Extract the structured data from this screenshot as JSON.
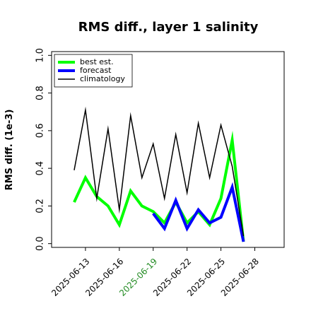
{
  "chart_data": {
    "type": "line",
    "title": "RMS diff., layer 1 salinity",
    "xlabel": "",
    "ylabel": "RMS diff. (1e-3)",
    "ylim": [
      -0.02,
      1.02
    ],
    "y_ticks": [
      0.0,
      0.2,
      0.4,
      0.6,
      0.8,
      1.0
    ],
    "y_tick_labels": [
      "0.0",
      "0.2",
      "0.4",
      "0.6",
      "0.8",
      "1.0"
    ],
    "x_ticks": [
      "2025-06-13",
      "2025-06-16",
      "2025-06-19",
      "2025-06-22",
      "2025-06-25",
      "2025-06-28"
    ],
    "highlighted_x_tick": "2025-06-19",
    "highlight_color": "#228B22",
    "legend_position": "upper-left",
    "grid": false,
    "series": [
      {
        "name": "best est.",
        "color": "#00ff00",
        "x": [
          "2025-06-12",
          "2025-06-13",
          "2025-06-14",
          "2025-06-15",
          "2025-06-16",
          "2025-06-17",
          "2025-06-18",
          "2025-06-19",
          "2025-06-20",
          "2025-06-21",
          "2025-06-22",
          "2025-06-23",
          "2025-06-24",
          "2025-06-25",
          "2025-06-26",
          "2025-06-27"
        ],
        "values": [
          0.22,
          0.35,
          0.25,
          0.2,
          0.1,
          0.28,
          0.2,
          0.17,
          0.11,
          0.22,
          0.11,
          0.17,
          0.1,
          0.24,
          0.55,
          0.01
        ]
      },
      {
        "name": "forecast",
        "color": "#0000ff",
        "x": [
          "2025-06-19",
          "2025-06-20",
          "2025-06-21",
          "2025-06-22",
          "2025-06-23",
          "2025-06-24",
          "2025-06-25",
          "2025-06-26",
          "2025-06-27"
        ],
        "values": [
          0.16,
          0.08,
          0.23,
          0.08,
          0.18,
          0.11,
          0.14,
          0.3,
          0.01
        ]
      },
      {
        "name": "climatology",
        "color": "#000000",
        "x": [
          "2025-06-12",
          "2025-06-13",
          "2025-06-14",
          "2025-06-15",
          "2025-06-16",
          "2025-06-17",
          "2025-06-18",
          "2025-06-19",
          "2025-06-20",
          "2025-06-21",
          "2025-06-22",
          "2025-06-23",
          "2025-06-24",
          "2025-06-25",
          "2025-06-26",
          "2025-06-27"
        ],
        "values": [
          0.39,
          0.71,
          0.24,
          0.61,
          0.18,
          0.68,
          0.35,
          0.53,
          0.24,
          0.58,
          0.27,
          0.64,
          0.35,
          0.63,
          0.41,
          0.04
        ]
      }
    ]
  }
}
